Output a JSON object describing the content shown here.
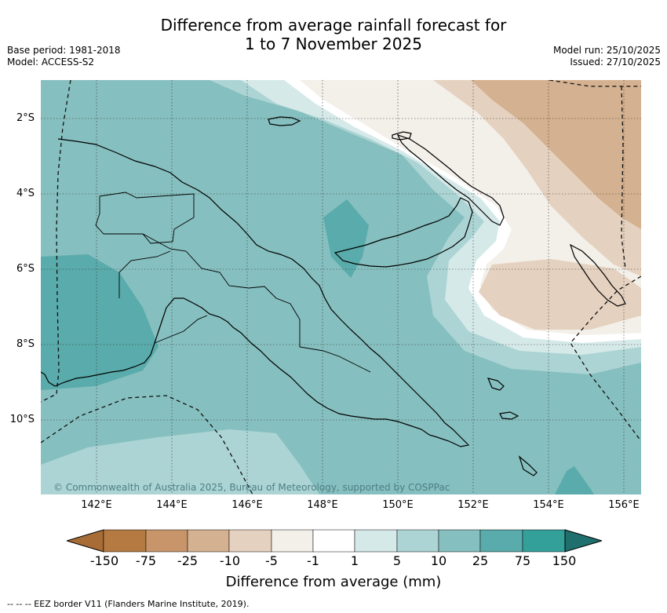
{
  "header": {
    "title_line1": "Difference from average rainfall forecast for",
    "title_line2": "1 to 7 November 2025",
    "base_period": "Base period: 1981-2018",
    "model": "Model: ACCESS-S2",
    "model_run": "Model run: 25/10/2025",
    "issued": "Issued: 27/10/2025"
  },
  "map": {
    "lat_labels": [
      "2°S",
      "4°S",
      "6°S",
      "8°S",
      "10°S"
    ],
    "lon_labels": [
      "142°E",
      "144°E",
      "146°E",
      "148°E",
      "150°E",
      "152°E",
      "154°E",
      "156°E"
    ],
    "copyright": "© Commonwealth of Australia 2025, Bureau of Meteorology, supported by COSPPac"
  },
  "legend": {
    "tick_labels": [
      "-150",
      "-75",
      "-25",
      "-10",
      "-5",
      "-1",
      "1",
      "5",
      "10",
      "25",
      "75",
      "150"
    ],
    "colors": [
      "#a86c36",
      "#b47a42",
      "#c8956a",
      "#d4b190",
      "#e5d1bf",
      "#f3efe9",
      "#ffffff",
      "#d6e9e9",
      "#acd4d4",
      "#86bfbf",
      "#5aabab",
      "#34a09a",
      "#1e6f6d"
    ],
    "label": "Difference from average (mm)"
  },
  "footer": {
    "eez_note": "--  --  -- EEZ border V11 (Flanders Marine Institute, 2019)."
  }
}
